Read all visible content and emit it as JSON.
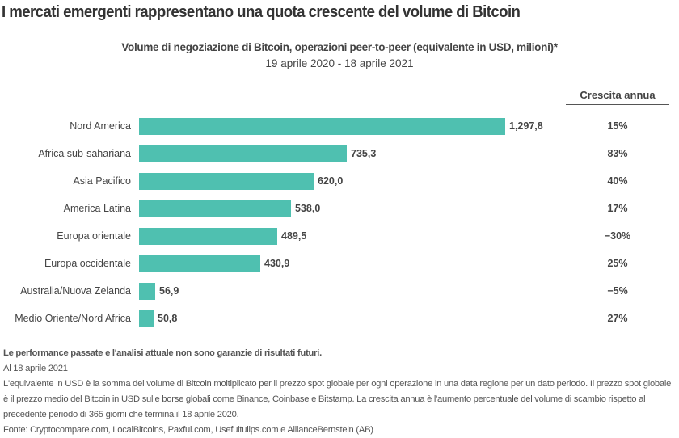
{
  "header": {
    "title": "I mercati emergenti rappresentano una quota crescente del volume di Bitcoin",
    "subtitle": "Volume di negoziazione di Bitcoin, operazioni peer-to-peer (equivalente in USD, milioni)*",
    "date_range": "19 aprile 2020 - 18 aprile 2021"
  },
  "growth_column": {
    "header": "Crescita annua"
  },
  "colors": {
    "bar": "#4fc0b0",
    "text": "#444444",
    "title": "#333333"
  },
  "chart_data": {
    "type": "bar",
    "orientation": "horizontal",
    "title": "Volume di negoziazione di Bitcoin, operazioni peer-to-peer (equivalente in USD, milioni)*",
    "subtitle": "19 aprile 2020 - 18 aprile 2021",
    "xlabel": "",
    "ylabel": "",
    "grid": false,
    "legend": null,
    "categories": [
      "Nord America",
      "Africa sub-sahariana",
      "Asia Pacifico",
      "America Latina",
      "Europa orientale",
      "Europa occidentale",
      "Australia/Nuova Zelanda",
      "Medio Oriente/Nord Africa"
    ],
    "values": [
      1297.8,
      735.3,
      620.0,
      538.0,
      489.5,
      430.9,
      56.9,
      50.8
    ],
    "value_labels": [
      "1,297,8",
      "735,3",
      "620,0",
      "538,0",
      "489,5",
      "430,9",
      "56,9",
      "50,8"
    ],
    "annual_growth_header": "Crescita annua",
    "annual_growth": [
      "15%",
      "83%",
      "40%",
      "17%",
      "−30%",
      "25%",
      "−5%",
      "27%"
    ],
    "annual_growth_values": [
      15,
      83,
      40,
      17,
      -30,
      25,
      -5,
      27
    ],
    "xlim": [
      0,
      1297.8
    ]
  },
  "footnotes": {
    "disclaimer": "Le performance passate e l'analisi attuale non sono garanzie di risultati futuri.",
    "as_of": "Al 18 aprile 2021",
    "definition": "L'equivalente in USD è la somma del volume di Bitcoin moltiplicato per il prezzo spot globale per ogni operazione in una data regione per un dato periodo. Il prezzo spot globale è il prezzo medio del Bitcoin in USD sulle borse globali come Binance, Coinbase e Bitstamp. La crescita annua è l'aumento percentuale del volume di scambio rispetto al precedente periodo di 365 giorni che termina il 18 aprile 2020.",
    "source": "Fonte: Cryptocompare.com, LocalBitcoins, Paxful.com, Usefultulips.com e AllianceBernstein (AB)"
  }
}
